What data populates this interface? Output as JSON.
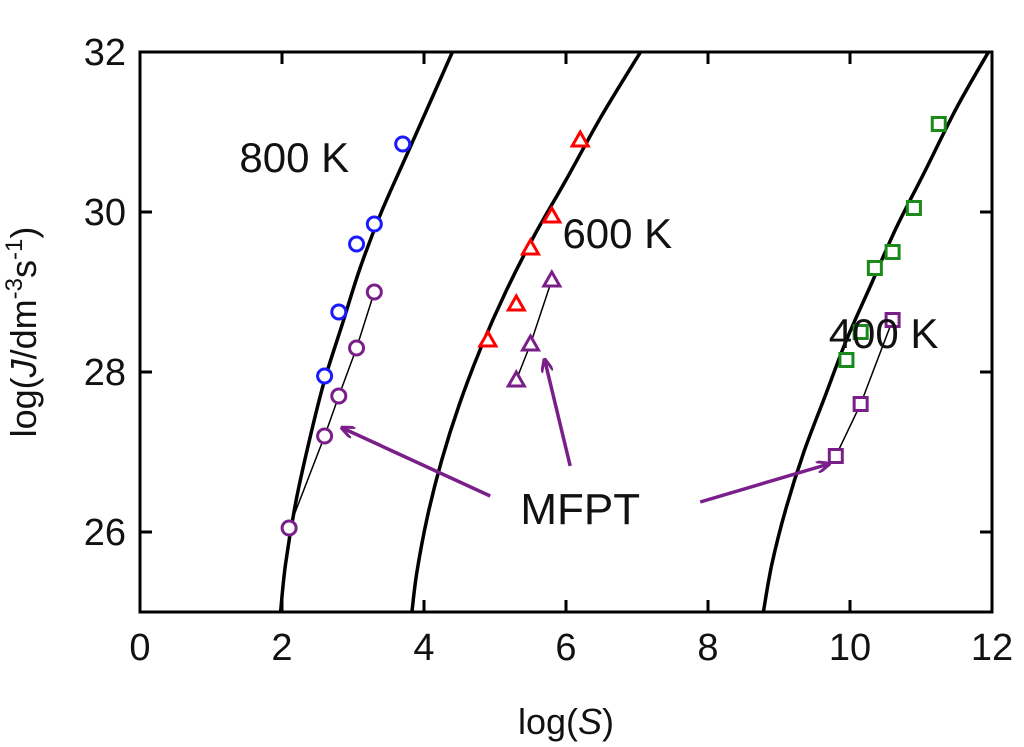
{
  "chart_data": {
    "type": "scatter",
    "xlabel": "log(S)",
    "ylabel": "log(J/dm-3s-1)",
    "xlim": [
      0,
      12
    ],
    "ylim": [
      25,
      32
    ],
    "xticks": [
      0,
      2,
      4,
      6,
      8,
      10,
      12
    ],
    "yticks": [
      26,
      28,
      30,
      32
    ],
    "grid": false,
    "legend": "none",
    "curves": [
      {
        "label": "800 K",
        "color": "#000000",
        "x": [
          1.98,
          2.05,
          2.2,
          2.4,
          2.6,
          2.85,
          3.1,
          3.4,
          3.75,
          4.1,
          4.4
        ],
        "y": [
          25.0,
          25.6,
          26.4,
          27.2,
          27.9,
          28.6,
          29.3,
          30.0,
          30.7,
          31.4,
          32.0
        ]
      },
      {
        "label": "600 K",
        "color": "#000000",
        "x": [
          3.83,
          3.9,
          4.05,
          4.25,
          4.5,
          4.8,
          5.15,
          5.55,
          6.0,
          6.5,
          7.05
        ],
        "y": [
          25.0,
          25.5,
          26.2,
          26.9,
          27.6,
          28.3,
          29.0,
          29.7,
          30.4,
          31.2,
          32.0
        ]
      },
      {
        "label": "400 K",
        "color": "#000000",
        "x": [
          8.78,
          8.9,
          9.1,
          9.35,
          9.65,
          9.95,
          10.3,
          10.65,
          11.05,
          11.5,
          11.95
        ],
        "y": [
          25.0,
          25.6,
          26.3,
          27.0,
          27.7,
          28.4,
          29.1,
          29.8,
          30.5,
          31.3,
          32.0
        ]
      }
    ],
    "series": [
      {
        "name": "800 K",
        "marker": "circle",
        "color": "#1a1aff",
        "line": false,
        "x": [
          2.6,
          2.8,
          3.05,
          3.3,
          3.7
        ],
        "y": [
          27.95,
          28.75,
          29.6,
          29.85,
          30.85
        ]
      },
      {
        "name": "800 K MFPT",
        "marker": "circle",
        "color": "#7a1f8a",
        "line": true,
        "x": [
          2.1,
          2.6,
          2.8,
          3.05,
          3.3
        ],
        "y": [
          26.05,
          27.2,
          27.7,
          28.3,
          29.0
        ]
      },
      {
        "name": "600 K",
        "marker": "triangle",
        "color": "#ff0000",
        "line": false,
        "x": [
          4.9,
          5.3,
          5.5,
          5.8,
          6.2
        ],
        "y": [
          28.4,
          28.85,
          29.55,
          29.95,
          30.9
        ]
      },
      {
        "name": "600 K MFPT",
        "marker": "triangle",
        "color": "#7a1f8a",
        "line": true,
        "x": [
          5.3,
          5.5,
          5.8
        ],
        "y": [
          27.9,
          28.35,
          29.15
        ]
      },
      {
        "name": "400 K",
        "marker": "square",
        "color": "#1a8a1a",
        "line": false,
        "x": [
          9.95,
          10.15,
          10.35,
          10.6,
          10.9,
          11.25
        ],
        "y": [
          28.15,
          28.5,
          29.3,
          29.5,
          30.05,
          31.1
        ]
      },
      {
        "name": "400 K MFPT",
        "marker": "square",
        "color": "#7a1f8a",
        "line": true,
        "x": [
          9.8,
          10.15,
          10.6
        ],
        "y": [
          26.95,
          27.6,
          28.65
        ]
      }
    ],
    "curve_labels": [
      {
        "text": "800 K",
        "x": 1.4,
        "y": 30.5
      },
      {
        "text": "600 K",
        "x": 5.95,
        "y": 29.55
      },
      {
        "text": "400 K",
        "x": 9.7,
        "y": 28.3
      }
    ],
    "annotation": {
      "text": "MFPT",
      "x": 6.2,
      "y": 26.3,
      "color": "#7a1f8a",
      "arrow_targets": [
        {
          "x": 2.85,
          "y": 27.3
        },
        {
          "x": 5.7,
          "y": 28.15
        },
        {
          "x": 9.7,
          "y": 26.85
        }
      ]
    }
  }
}
